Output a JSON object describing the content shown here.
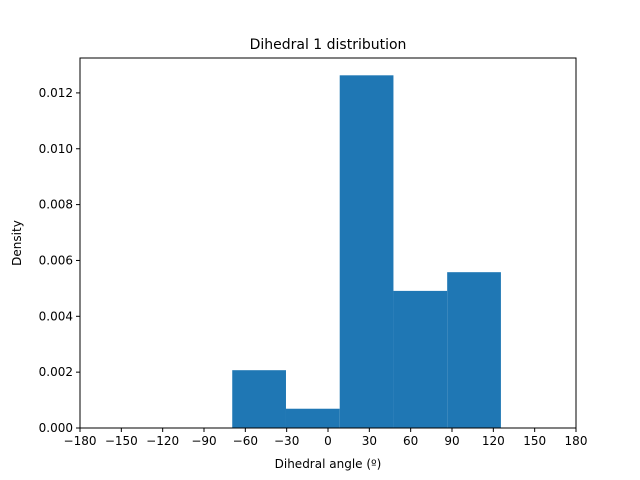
{
  "chart_data": {
    "type": "bar",
    "title": "Dihedral 1 distribution",
    "xlabel": "Dihedral angle (º)",
    "ylabel": "Density",
    "xlim": [
      -180,
      180
    ],
    "ylim": [
      0,
      0.01325
    ],
    "xticks": [
      -180,
      -150,
      -120,
      -90,
      -60,
      -30,
      0,
      30,
      60,
      90,
      120,
      150,
      180
    ],
    "xtick_labels": [
      "−180",
      "−150",
      "−120",
      "−90",
      "−60",
      "−30",
      "0",
      "30",
      "60",
      "90",
      "120",
      "150",
      "180"
    ],
    "yticks": [
      0.0,
      0.002,
      0.004,
      0.006,
      0.008,
      0.01,
      0.012
    ],
    "ytick_labels": [
      "0.000",
      "0.002",
      "0.004",
      "0.006",
      "0.008",
      "0.010",
      "0.012"
    ],
    "bins": [
      {
        "x0": -69.5,
        "x1": -30.5,
        "value": 0.00207
      },
      {
        "x0": -30.5,
        "x1": 8.5,
        "value": 0.00069
      },
      {
        "x0": 8.5,
        "x1": 47.5,
        "value": 0.01263
      },
      {
        "x0": 47.5,
        "x1": 86.5,
        "value": 0.00491
      },
      {
        "x0": 86.5,
        "x1": 125.5,
        "value": 0.00558
      }
    ],
    "bar_color": "#1f77b4",
    "grid": false,
    "legend": "none"
  }
}
